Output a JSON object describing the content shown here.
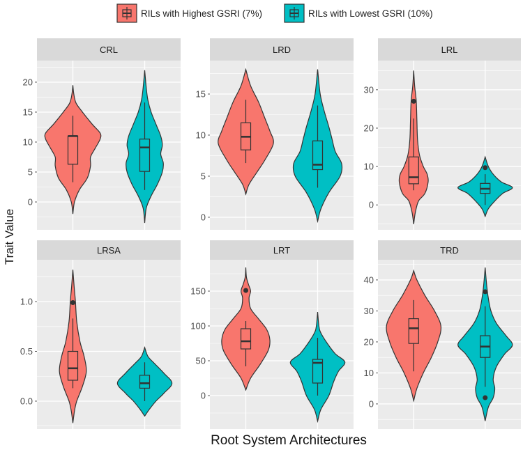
{
  "colors": {
    "high": "#F8766D",
    "low": "#00BFC4",
    "panel": "#EBEBEB",
    "strip": "#D9D9D9",
    "outline": "#333333"
  },
  "chart_data": {
    "type": "violin",
    "xlabel": "Root System Architectures",
    "ylabel": "Trait Value",
    "legend": {
      "placement": "top",
      "entries": [
        "RILs with Highest GSRI (7%)",
        "RILs with Lowest GSRI (10%)"
      ]
    },
    "grid": true,
    "facets": [
      {
        "title": "CRL",
        "ylim": [
          -4.65,
          23.6
        ],
        "ticks": [
          0,
          5,
          10,
          15,
          20
        ],
        "tick_labels": [
          "0",
          "5",
          "10",
          "15",
          "20"
        ],
        "groups": [
          {
            "profile": [
              [
                -2,
                0
              ],
              [
                0,
                0.05
              ],
              [
                2,
                0.2
              ],
              [
                4,
                0.45
              ],
              [
                6,
                0.55
              ],
              [
                7.5,
                0.55
              ],
              [
                9,
                0.7
              ],
              [
                10.5,
                0.85
              ],
              [
                11.5,
                0.85
              ],
              [
                13,
                0.6
              ],
              [
                15,
                0.3
              ],
              [
                16.5,
                0.1
              ],
              [
                18,
                0.03
              ],
              [
                19.5,
                0
              ]
            ],
            "box": {
              "lower": 3.3,
              "q1": 6.3,
              "median": 11,
              "q3": 11,
              "upper": 14.4
            },
            "outliers": []
          },
          {
            "profile": [
              [
                -3.5,
                0
              ],
              [
                -1,
                0.05
              ],
              [
                1,
                0.2
              ],
              [
                3,
                0.4
              ],
              [
                5,
                0.55
              ],
              [
                6.5,
                0.58
              ],
              [
                8,
                0.5
              ],
              [
                9.5,
                0.55
              ],
              [
                11,
                0.5
              ],
              [
                13,
                0.35
              ],
              [
                15,
                0.2
              ],
              [
                17,
                0.1
              ],
              [
                19,
                0.05
              ],
              [
                22,
                0
              ]
            ],
            "box": {
              "lower": 2,
              "q1": 5.1,
              "median": 9.1,
              "q3": 10.5,
              "upper": 16.6
            },
            "outliers": []
          }
        ]
      },
      {
        "title": "LRD",
        "ylim": [
          -1.53,
          19.07
        ],
        "ticks": [
          0,
          5,
          10,
          15
        ],
        "tick_labels": [
          "0",
          "5",
          "10",
          "15"
        ],
        "groups": [
          {
            "profile": [
              [
                2.8,
                0
              ],
              [
                4,
                0.1
              ],
              [
                5.5,
                0.35
              ],
              [
                7,
                0.6
              ],
              [
                9,
                0.86
              ],
              [
                10.5,
                0.75
              ],
              [
                12,
                0.6
              ],
              [
                14,
                0.4
              ],
              [
                16,
                0.15
              ],
              [
                18,
                0
              ]
            ],
            "box": {
              "lower": 6.6,
              "q1": 8.2,
              "median": 9.8,
              "q3": 11.5,
              "upper": 14.3
            },
            "outliers": []
          },
          {
            "profile": [
              [
                -0.5,
                0
              ],
              [
                1,
                0.1
              ],
              [
                3,
                0.35
              ],
              [
                5,
                0.7
              ],
              [
                6.5,
                0.75
              ],
              [
                8,
                0.55
              ],
              [
                9.5,
                0.45
              ],
              [
                11,
                0.35
              ],
              [
                13,
                0.2
              ],
              [
                15,
                0.08
              ],
              [
                18,
                0
              ]
            ],
            "box": {
              "lower": 3.6,
              "q1": 5.8,
              "median": 6.4,
              "q3": 9.3,
              "upper": 13.6
            },
            "outliers": []
          }
        ]
      },
      {
        "title": "LRL",
        "ylim": [
          -6.5,
          37.6
        ],
        "ticks": [
          0,
          10,
          20,
          30
        ],
        "tick_labels": [
          "0",
          "10",
          "20",
          "30"
        ],
        "groups": [
          {
            "profile": [
              [
                -5,
                0
              ],
              [
                -2,
                0.05
              ],
              [
                1,
                0.15
              ],
              [
                3,
                0.35
              ],
              [
                6,
                0.45
              ],
              [
                8,
                0.42
              ],
              [
                10,
                0.3
              ],
              [
                13,
                0.18
              ],
              [
                17,
                0.12
              ],
              [
                22,
                0.1
              ],
              [
                27,
                0.08
              ],
              [
                31,
                0.03
              ],
              [
                35,
                0
              ]
            ],
            "box": {
              "lower": 3.8,
              "q1": 5.5,
              "median": 7.2,
              "q3": 12.5,
              "upper": 22.5
            },
            "outliers": [
              27
            ]
          },
          {
            "profile": [
              [
                -3,
                0
              ],
              [
                -1,
                0.1
              ],
              [
                1,
                0.3
              ],
              [
                3,
                0.55
              ],
              [
                4.5,
                0.85
              ],
              [
                6,
                0.5
              ],
              [
                8,
                0.25
              ],
              [
                10,
                0.1
              ],
              [
                12.5,
                0
              ]
            ],
            "box": {
              "lower": 0,
              "q1": 3,
              "median": 4.2,
              "q3": 5.6,
              "upper": 8
            },
            "outliers": [
              9.7
            ]
          }
        ]
      },
      {
        "title": "LRSA",
        "ylim": [
          -0.28,
          1.42
        ],
        "ticks": [
          0,
          0.5,
          1.0
        ],
        "tick_labels": [
          "0.0",
          "0.5",
          "1.0"
        ],
        "groups": [
          {
            "profile": [
              [
                -0.22,
                0
              ],
              [
                -0.1,
                0.05
              ],
              [
                0,
                0.12
              ],
              [
                0.15,
                0.3
              ],
              [
                0.3,
                0.42
              ],
              [
                0.45,
                0.35
              ],
              [
                0.6,
                0.22
              ],
              [
                0.8,
                0.12
              ],
              [
                1.0,
                0.08
              ],
              [
                1.15,
                0.04
              ],
              [
                1.32,
                0
              ]
            ],
            "box": {
              "lower": 0.13,
              "q1": 0.21,
              "median": 0.33,
              "q3": 0.5,
              "upper": 0.83
            },
            "outliers": [
              0.99
            ]
          },
          {
            "profile": [
              [
                -0.15,
                0
              ],
              [
                -0.08,
                0.15
              ],
              [
                0,
                0.35
              ],
              [
                0.08,
                0.6
              ],
              [
                0.18,
                0.85
              ],
              [
                0.28,
                0.6
              ],
              [
                0.38,
                0.3
              ],
              [
                0.45,
                0.1
              ],
              [
                0.54,
                0
              ]
            ],
            "box": {
              "lower": 0,
              "q1": 0.13,
              "median": 0.18,
              "q3": 0.26,
              "upper": 0.39
            },
            "outliers": []
          }
        ]
      },
      {
        "title": "LRT",
        "ylim": [
          -48,
          195
        ],
        "ticks": [
          0,
          50,
          100,
          150
        ],
        "tick_labels": [
          "0",
          "50",
          "100",
          "150"
        ],
        "groups": [
          {
            "profile": [
              [
                8,
                0
              ],
              [
                25,
                0.15
              ],
              [
                45,
                0.45
              ],
              [
                65,
                0.7
              ],
              [
                80,
                0.75
              ],
              [
                95,
                0.65
              ],
              [
                110,
                0.4
              ],
              [
                125,
                0.15
              ],
              [
                140,
                0.1
              ],
              [
                150,
                0.15
              ],
              [
                160,
                0.08
              ],
              [
                170,
                0.02
              ],
              [
                184,
                0
              ]
            ],
            "box": {
              "lower": 42,
              "q1": 67,
              "median": 78,
              "q3": 96,
              "upper": 107
            },
            "outliers": [
              151
            ]
          },
          {
            "profile": [
              [
                -37,
                0
              ],
              [
                -20,
                0.1
              ],
              [
                0,
                0.35
              ],
              [
                20,
                0.5
              ],
              [
                35,
                0.65
              ],
              [
                48,
                0.85
              ],
              [
                60,
                0.55
              ],
              [
                75,
                0.3
              ],
              [
                90,
                0.1
              ],
              [
                100,
                0.04
              ],
              [
                120,
                0
              ]
            ],
            "box": {
              "lower": 0,
              "q1": 18,
              "median": 47,
              "q3": 52,
              "upper": 83
            },
            "outliers": []
          }
        ]
      },
      {
        "title": "TRD",
        "ylim": [
          -8.1,
          46.5
        ],
        "ticks": [
          0,
          10,
          20,
          30,
          40
        ],
        "tick_labels": [
          "0",
          "10",
          "20",
          "30",
          "40"
        ],
        "groups": [
          {
            "profile": [
              [
                1,
                0
              ],
              [
                5,
                0.1
              ],
              [
                10,
                0.3
              ],
              [
                15,
                0.55
              ],
              [
                20,
                0.75
              ],
              [
                25,
                0.85
              ],
              [
                30,
                0.65
              ],
              [
                35,
                0.35
              ],
              [
                40,
                0.1
              ],
              [
                43,
                0
              ]
            ],
            "box": {
              "lower": 10.5,
              "q1": 19.5,
              "median": 24.4,
              "q3": 27.5,
              "upper": 33.5
            },
            "outliers": []
          },
          {
            "profile": [
              [
                -5.5,
                0
              ],
              [
                -1,
                0.1
              ],
              [
                2,
                0.25
              ],
              [
                5,
                0.3
              ],
              [
                8,
                0.25
              ],
              [
                12,
                0.35
              ],
              [
                16,
                0.6
              ],
              [
                19,
                0.85
              ],
              [
                22,
                0.65
              ],
              [
                26,
                0.35
              ],
              [
                30,
                0.18
              ],
              [
                34,
                0.1
              ],
              [
                38,
                0.05
              ],
              [
                44,
                0
              ]
            ],
            "box": {
              "lower": 5.5,
              "q1": 15,
              "median": 18.5,
              "q3": 22,
              "upper": 31.5
            },
            "outliers": [
              2,
              36.2
            ]
          }
        ]
      }
    ]
  }
}
